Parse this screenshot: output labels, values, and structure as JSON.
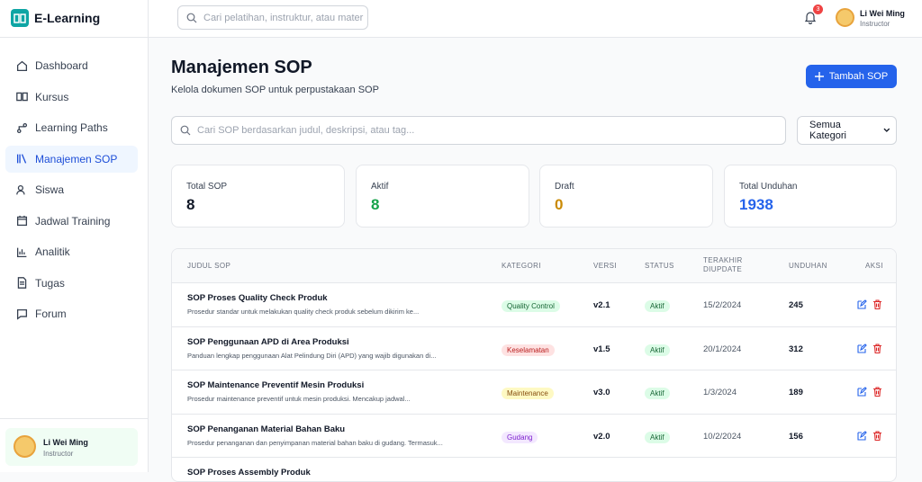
{
  "app": {
    "name": "E-Learning"
  },
  "topbar": {
    "search_placeholder": "Cari pelatihan, instruktur, atau mater",
    "notifications": 3,
    "user_name": "Li Wei Ming",
    "user_role": "Instructor"
  },
  "nav": [
    "Dashboard",
    "Kursus",
    "Learning Paths",
    "Manajemen SOP",
    "Siswa",
    "Jadwal Training",
    "Analitik",
    "Tugas",
    "Forum"
  ],
  "sidebar_user": {
    "name": "Li Wei Ming",
    "role": "Instructor"
  },
  "page": {
    "title": "Manajemen SOP",
    "subtitle": "Kelola dokumen SOP untuk perpustakaan SOP",
    "add_button": "Tambah SOP",
    "search_placeholder": "Cari SOP berdasarkan judul, deskripsi, atau tag...",
    "category_filter": "Semua Kategori"
  },
  "stats": [
    {
      "label": "Total SOP",
      "value": 8
    },
    {
      "label": "Aktif",
      "value": 8
    },
    {
      "label": "Draft",
      "value": 0
    },
    {
      "label": "Total Unduhan",
      "value": 1938
    }
  ],
  "table": {
    "headers": [
      "JUDUL SOP",
      "KATEGORI",
      "VERSI",
      "STATUS",
      "TERAKHIR DIUPDATE",
      "UNDUHAN",
      "AKSI"
    ],
    "rows": [
      {
        "title": "SOP Proses Quality Check Produk",
        "description": "Prosedur standar untuk melakukan quality check produk sebelum dikirim ke...",
        "category": "Quality Control",
        "version": "v2.1",
        "status": "Aktif",
        "updated": "15/2/2024",
        "downloads": 245
      },
      {
        "title": "SOP Penggunaan APD di Area Produksi",
        "description": "Panduan lengkap penggunaan Alat Pelindung Diri (APD) yang wajib digunakan di...",
        "category": "Keselamatan",
        "version": "v1.5",
        "status": "Aktif",
        "updated": "20/1/2024",
        "downloads": 312
      },
      {
        "title": "SOP Maintenance Preventif Mesin Produksi",
        "description": "Prosedur maintenance preventif untuk mesin produksi. Mencakup jadwal...",
        "category": "Maintenance",
        "version": "v3.0",
        "status": "Aktif",
        "updated": "1/3/2024",
        "downloads": 189
      },
      {
        "title": "SOP Penanganan Material Bahan Baku",
        "description": "Prosedur penanganan dan penyimpanan material bahan baku di gudang. Termasuk...",
        "category": "Gudang",
        "version": "v2.0",
        "status": "Aktif",
        "updated": "10/2/2024",
        "downloads": 156
      },
      {
        "title": "SOP Proses Assembly Produk"
      }
    ]
  }
}
